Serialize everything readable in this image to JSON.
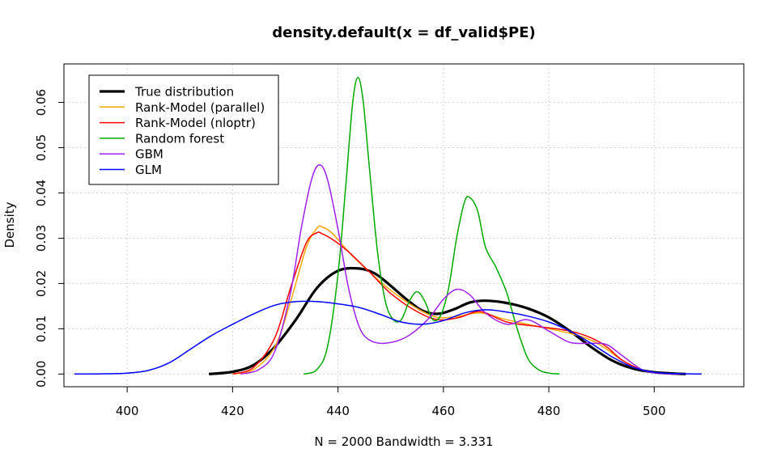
{
  "chart_data": {
    "type": "line",
    "title": "density.default(x = df_valid$PE)",
    "xlabel": "N = 2000   Bandwidth = 3.331",
    "ylabel": "Density",
    "xlim": [
      388,
      517
    ],
    "ylim": [
      -0.0028,
      0.0685
    ],
    "x_ticks": [
      400,
      420,
      440,
      460,
      480,
      500
    ],
    "y_ticks": [
      0.0,
      0.01,
      0.02,
      0.03,
      0.04,
      0.05,
      0.06
    ],
    "x_tick_labels": [
      "400",
      "420",
      "440",
      "460",
      "480",
      "500"
    ],
    "y_tick_labels": [
      "0.00",
      "0.01",
      "0.02",
      "0.03",
      "0.04",
      "0.05",
      "0.06"
    ],
    "grid": true,
    "legend_position": "top-left",
    "series": [
      {
        "name": "True distribution",
        "color": "#000000",
        "width": 3.2,
        "x": [
          415.5,
          420,
          424,
          428,
          432,
          436,
          440,
          444,
          447,
          450,
          453,
          456,
          459,
          462,
          465,
          468,
          472,
          476,
          480,
          484,
          488,
          492,
          496,
          500,
          504,
          506
        ],
        "y": [
          0.0,
          0.0005,
          0.002,
          0.006,
          0.012,
          0.019,
          0.0228,
          0.0233,
          0.0222,
          0.0195,
          0.0165,
          0.014,
          0.0133,
          0.0143,
          0.0158,
          0.0162,
          0.0157,
          0.0145,
          0.0125,
          0.0095,
          0.006,
          0.003,
          0.0012,
          0.0004,
          0.0001,
          0.0
        ]
      },
      {
        "name": "Rank-Model (parallel)",
        "color": "#ffa500",
        "width": 1.5,
        "x": [
          420,
          424,
          428,
          431,
          434,
          436,
          437,
          439,
          442,
          446,
          450,
          455,
          459,
          463,
          467,
          472,
          478,
          484,
          488,
          491,
          494,
          498,
          502,
          505
        ],
        "y": [
          0.0,
          0.001,
          0.006,
          0.016,
          0.028,
          0.0322,
          0.0325,
          0.031,
          0.027,
          0.0225,
          0.0185,
          0.0145,
          0.0125,
          0.0128,
          0.0135,
          0.012,
          0.0105,
          0.009,
          0.0075,
          0.0055,
          0.003,
          0.0008,
          0.0001,
          0.0
        ]
      },
      {
        "name": "Rank-Model (nloptr)",
        "color": "#ff0000",
        "width": 1.5,
        "x": [
          420,
          424,
          428,
          431,
          434,
          436,
          437,
          439,
          442,
          446,
          450,
          455,
          459,
          463,
          467,
          472,
          478,
          484,
          488,
          491,
          494,
          498,
          502,
          505
        ],
        "y": [
          0.0,
          0.0015,
          0.008,
          0.019,
          0.029,
          0.0312,
          0.031,
          0.0297,
          0.027,
          0.0225,
          0.0178,
          0.0138,
          0.012,
          0.0125,
          0.0138,
          0.0115,
          0.0105,
          0.0095,
          0.008,
          0.006,
          0.003,
          0.0008,
          0.0001,
          0.0
        ]
      },
      {
        "name": "Random forest",
        "color": "#00aa00",
        "width": 1.5,
        "x": [
          433.5,
          436,
          438,
          440,
          441.5,
          442.8,
          443.8,
          444.8,
          446,
          447.5,
          449,
          450.5,
          452,
          453.5,
          455,
          456.5,
          458,
          459.5,
          461,
          462.5,
          464,
          465,
          466.5,
          468,
          470,
          472,
          474,
          476,
          478,
          480,
          482
        ],
        "y": [
          0.0,
          0.001,
          0.006,
          0.022,
          0.042,
          0.06,
          0.0655,
          0.06,
          0.045,
          0.027,
          0.016,
          0.012,
          0.012,
          0.016,
          0.0182,
          0.016,
          0.012,
          0.013,
          0.019,
          0.03,
          0.038,
          0.039,
          0.036,
          0.028,
          0.0235,
          0.018,
          0.01,
          0.0035,
          0.001,
          0.0002,
          0.0
        ]
      },
      {
        "name": "GBM",
        "color": "#a020f0",
        "width": 1.5,
        "x": [
          421.5,
          425,
          428,
          431,
          433,
          435,
          436.5,
          438,
          440,
          442,
          444,
          446,
          449,
          453,
          457,
          460,
          462.5,
          465,
          468,
          472,
          476,
          480,
          484,
          488,
          491,
          494,
          498,
          502,
          505
        ],
        "y": [
          0.0,
          0.001,
          0.005,
          0.018,
          0.032,
          0.043,
          0.0462,
          0.043,
          0.032,
          0.019,
          0.0105,
          0.0075,
          0.0068,
          0.0082,
          0.012,
          0.0165,
          0.0187,
          0.0175,
          0.0135,
          0.011,
          0.012,
          0.0095,
          0.007,
          0.0068,
          0.0065,
          0.004,
          0.0008,
          0.0001,
          0.0
        ]
      },
      {
        "name": "GLM",
        "color": "#0000ff",
        "width": 1.5,
        "x": [
          390,
          395,
          400,
          404,
          408,
          412,
          416,
          420,
          424,
          428,
          432,
          436,
          440,
          444,
          448,
          452,
          456,
          460,
          464,
          468,
          472,
          476,
          480,
          484,
          488,
          492,
          496,
          500,
          504,
          509
        ],
        "y": [
          0.0,
          5e-05,
          0.0002,
          0.0008,
          0.0025,
          0.0055,
          0.0085,
          0.011,
          0.0133,
          0.0152,
          0.016,
          0.016,
          0.0155,
          0.0147,
          0.0132,
          0.0115,
          0.011,
          0.0118,
          0.0135,
          0.0142,
          0.0137,
          0.0128,
          0.0115,
          0.0095,
          0.0068,
          0.0038,
          0.0015,
          0.0004,
          0.0001,
          0.0
        ]
      }
    ]
  }
}
